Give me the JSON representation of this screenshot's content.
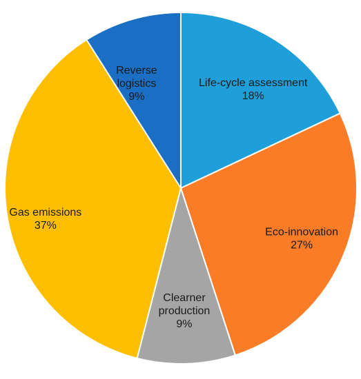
{
  "chart_data": {
    "type": "pie",
    "title": "",
    "start_angle_deg": 0,
    "direction": "clockwise",
    "slices": [
      {
        "name_lines": [
          "Life-cycle assessment"
        ],
        "label": "Life-cycle assessment",
        "value": 18,
        "value_label": "18%",
        "color": "#1f9fda"
      },
      {
        "name_lines": [
          "Eco-innovation"
        ],
        "label": "Eco-innovation",
        "value": 27,
        "value_label": "27%",
        "color": "#fb7c26"
      },
      {
        "name_lines": [
          "Clearner",
          "production"
        ],
        "label": "Clearner production",
        "value": 9,
        "value_label": "9%",
        "color": "#a5a5a5"
      },
      {
        "name_lines": [
          "Gas emissions"
        ],
        "label": "Gas emissions",
        "value": 37,
        "value_label": "37%",
        "color": "#ffbf00"
      },
      {
        "name_lines": [
          "Reverse",
          "logistics"
        ],
        "label": "Reverse logistics",
        "value": 9,
        "value_label": "9%",
        "color": "#1a6fc4"
      }
    ]
  }
}
